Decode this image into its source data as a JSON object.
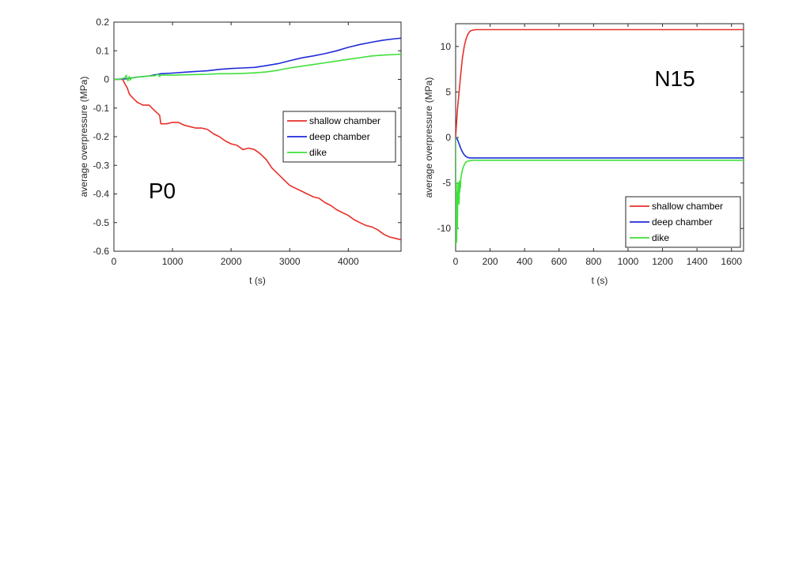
{
  "chart_data": [
    {
      "id": "left",
      "type": "line",
      "panel_label": "P0",
      "xlabel": "t (s)",
      "ylabel": "average overpressure (MPa)",
      "xlim": [
        0,
        4900
      ],
      "ylim": [
        -0.6,
        0.2
      ],
      "xticks": [
        0,
        1000,
        2000,
        3000,
        4000
      ],
      "yticks": [
        0.2,
        0.1,
        0,
        -0.1,
        -0.2,
        -0.3,
        -0.4,
        -0.5,
        -0.6
      ],
      "legend_position": "right-middle",
      "series": [
        {
          "name": "shallow chamber",
          "color": "#e8302a",
          "x": [
            0,
            150,
            200,
            230,
            260,
            300,
            350,
            400,
            450,
            500,
            600,
            700,
            780,
            800,
            900,
            1000,
            1100,
            1200,
            1300,
            1400,
            1500,
            1600,
            1700,
            1800,
            1900,
            2000,
            2100,
            2200,
            2300,
            2400,
            2500,
            2600,
            2700,
            2800,
            2900,
            3000,
            3100,
            3200,
            3300,
            3400,
            3500,
            3600,
            3700,
            3800,
            3900,
            4000,
            4100,
            4200,
            4300,
            4400,
            4500,
            4600,
            4700,
            4800,
            4900
          ],
          "values": [
            0,
            0,
            -0.02,
            -0.03,
            -0.05,
            -0.06,
            -0.07,
            -0.08,
            -0.085,
            -0.09,
            -0.09,
            -0.11,
            -0.125,
            -0.155,
            -0.155,
            -0.15,
            -0.15,
            -0.16,
            -0.165,
            -0.17,
            -0.17,
            -0.175,
            -0.19,
            -0.2,
            -0.215,
            -0.225,
            -0.23,
            -0.245,
            -0.24,
            -0.245,
            -0.26,
            -0.28,
            -0.31,
            -0.33,
            -0.35,
            -0.37,
            -0.38,
            -0.39,
            -0.4,
            -0.41,
            -0.415,
            -0.43,
            -0.44,
            -0.455,
            -0.465,
            -0.475,
            -0.49,
            -0.5,
            -0.51,
            -0.515,
            -0.525,
            -0.54,
            -0.55,
            -0.555,
            -0.56
          ]
        },
        {
          "name": "deep chamber",
          "color": "#1f2cd8",
          "x": [
            0,
            200,
            400,
            600,
            800,
            1000,
            1200,
            1400,
            1600,
            1800,
            2000,
            2200,
            2400,
            2600,
            2800,
            3000,
            3200,
            3400,
            3600,
            3800,
            4000,
            4200,
            4400,
            4600,
            4800,
            4900
          ],
          "values": [
            0,
            0.002,
            0.008,
            0.012,
            0.02,
            0.022,
            0.025,
            0.028,
            0.03,
            0.035,
            0.038,
            0.04,
            0.042,
            0.048,
            0.055,
            0.065,
            0.075,
            0.082,
            0.09,
            0.1,
            0.112,
            0.122,
            0.13,
            0.137,
            0.142,
            0.144
          ]
        },
        {
          "name": "dike",
          "color": "#3fe03a",
          "x": [
            0,
            100,
            180,
            200,
            210,
            220,
            240,
            260,
            280,
            300,
            350,
            400,
            500,
            600,
            700,
            750,
            780,
            800,
            1000,
            1200,
            1400,
            1600,
            1800,
            2000,
            2200,
            2400,
            2600,
            2800,
            3000,
            3200,
            3400,
            3600,
            3800,
            4000,
            4200,
            4400,
            4600,
            4800,
            4900
          ],
          "values": [
            0,
            0,
            0.005,
            0.01,
            0.015,
            0.005,
            -0.005,
            0.01,
            -0.002,
            0.005,
            0.006,
            0.008,
            0.01,
            0.012,
            0.013,
            0.018,
            0.01,
            0.015,
            0.015,
            0.016,
            0.017,
            0.018,
            0.02,
            0.02,
            0.021,
            0.023,
            0.026,
            0.032,
            0.04,
            0.046,
            0.052,
            0.058,
            0.064,
            0.07,
            0.076,
            0.082,
            0.085,
            0.087,
            0.088
          ]
        }
      ]
    },
    {
      "id": "right",
      "type": "line",
      "panel_label": "N15",
      "xlabel": "t (s)",
      "ylabel": "average overpressure (MPa)",
      "xlim": [
        0,
        1670
      ],
      "ylim": [
        -12.5,
        12.5
      ],
      "xticks": [
        0,
        200,
        400,
        600,
        800,
        1000,
        1200,
        1400,
        1600
      ],
      "yticks": [
        10,
        5,
        0,
        -5,
        -10
      ],
      "legend_position": "bottom-right",
      "series": [
        {
          "name": "shallow chamber",
          "color": "#e8302a",
          "x": [
            0,
            5,
            10,
            20,
            30,
            40,
            50,
            60,
            70,
            80,
            90,
            100,
            120,
            150,
            200,
            400,
            800,
            1200,
            1670
          ],
          "values": [
            0,
            1.5,
            3,
            5,
            7,
            8.8,
            10,
            10.8,
            11.3,
            11.6,
            11.75,
            11.8,
            11.85,
            11.85,
            11.85,
            11.85,
            11.85,
            11.85,
            11.85
          ]
        },
        {
          "name": "deep chamber",
          "color": "#1f2cd8",
          "x": [
            0,
            10,
            20,
            30,
            40,
            50,
            60,
            70,
            80,
            100,
            150,
            200,
            400,
            800,
            1200,
            1670
          ],
          "values": [
            0,
            -0.2,
            -0.7,
            -1.2,
            -1.6,
            -1.9,
            -2.1,
            -2.2,
            -2.25,
            -2.25,
            -2.25,
            -2.25,
            -2.25,
            -2.25,
            -2.25,
            -2.25
          ]
        },
        {
          "name": "dike",
          "color": "#3fe03a",
          "x": [
            0,
            2,
            4,
            6,
            8,
            10,
            12,
            14,
            16,
            18,
            20,
            22,
            24,
            26,
            28,
            30,
            35,
            40,
            50,
            60,
            70,
            80,
            100,
            150,
            200,
            400,
            800,
            1200,
            1670
          ],
          "values": [
            0,
            -11.8,
            -5,
            -11.5,
            -6,
            -10,
            -7.5,
            -5,
            -7,
            -5.5,
            -7.3,
            -4.8,
            -6,
            -5,
            -5.5,
            -4.6,
            -4,
            -3.5,
            -3,
            -2.7,
            -2.6,
            -2.55,
            -2.5,
            -2.5,
            -2.5,
            -2.5,
            -2.5,
            -2.5,
            -2.5
          ]
        }
      ]
    }
  ]
}
